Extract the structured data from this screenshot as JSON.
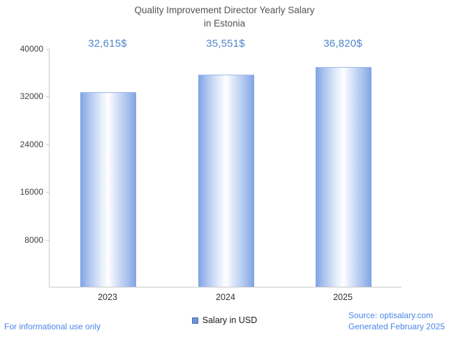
{
  "chart_data": {
    "type": "bar",
    "title": "Quality Improvement Director Yearly Salary\nin Estonia",
    "categories": [
      "2023",
      "2024",
      "2025"
    ],
    "values": [
      32615,
      35551,
      36820
    ],
    "value_labels": [
      "32,615$",
      "35,551$",
      "36,820$"
    ],
    "xlabel": "",
    "ylabel": "",
    "ylim": [
      0,
      40000
    ],
    "yticks": [
      8000,
      16000,
      24000,
      32000,
      40000
    ],
    "grid": false,
    "legend_position": "bottom",
    "series_name": "Salary in USD",
    "bar_edge_color": "#7fa3e3",
    "bar_center_color": "#ffffff",
    "value_label_color": "#4f86c8",
    "accent_blue": "#4a86e8"
  },
  "legend": {
    "label": "Salary in USD"
  },
  "footer": {
    "disclaimer": "For informational use only",
    "source": "Source: optisalary.com",
    "generated": "Generated February 2025"
  }
}
